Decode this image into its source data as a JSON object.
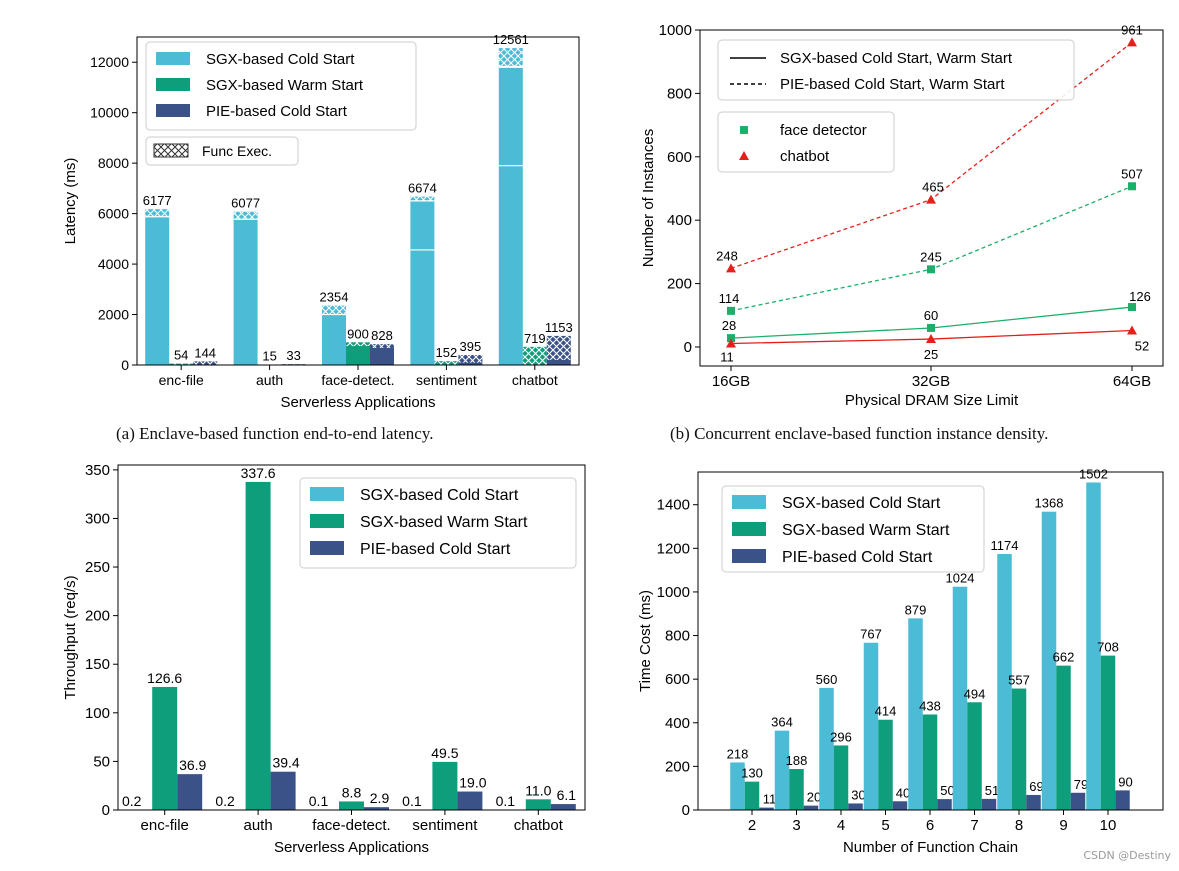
{
  "colors": {
    "sgx_cold": "#4CBCD6",
    "sgx_warm": "#0E9E7C",
    "pie_cold": "#3B5289",
    "face_detector": "#1DAF6A",
    "chatbot": "#E3211C"
  },
  "captions": {
    "a": "(a) Enclave-based function end-to-end latency.",
    "b": "(b) Concurrent enclave-based function instance density."
  },
  "watermark": "CSDN @Destiny",
  "chart_data": [
    {
      "id": "a",
      "type": "bar",
      "xlabel": "Serverless Applications",
      "ylabel": "Latency (ms)",
      "ylim": [
        0,
        13000
      ],
      "yticks": [
        0,
        2000,
        4000,
        6000,
        8000,
        10000,
        12000
      ],
      "categories": [
        "enc-file",
        "auth",
        "face-detect.",
        "sentiment",
        "chatbot"
      ],
      "series": [
        {
          "name": "SGX-based Cold Start",
          "color_key": "sgx_cold",
          "values": [
            6177,
            6077,
            2354,
            6674,
            12561
          ],
          "func_exec": [
            300,
            300,
            354,
            170,
            730
          ]
        },
        {
          "name": "SGX-based Warm Start",
          "color_key": "sgx_warm",
          "values": [
            54,
            15,
            900,
            152,
            719
          ],
          "func_exec": [
            54,
            15,
            150,
            152,
            719
          ]
        },
        {
          "name": "PIE-based Cold Start",
          "color_key": "pie_cold",
          "values": [
            144,
            33,
            828,
            395,
            1153
          ],
          "func_exec": [
            120,
            33,
            150,
            300,
            950
          ]
        }
      ],
      "labels": [
        [
          "6177",
          "54",
          "144"
        ],
        [
          "6077",
          "15",
          "33"
        ],
        [
          "2354",
          "900",
          "828"
        ],
        [
          "6674",
          "152",
          "395"
        ],
        [
          "12561",
          "719",
          "1153"
        ]
      ],
      "legend": {
        "position": "top-left",
        "extra": "Func Exec."
      },
      "grid": false
    },
    {
      "id": "b",
      "type": "line",
      "xlabel": "Physical DRAM Size Limit",
      "ylabel": "Number of Instances",
      "x": [
        "16GB",
        "32GB",
        "64GB"
      ],
      "ylim": [
        -60,
        1000
      ],
      "yticks": [
        0,
        200,
        400,
        600,
        800,
        1000
      ],
      "series": [
        {
          "name": "face detector",
          "color_key": "face_detector",
          "marker": "square",
          "linestyle": "dashed",
          "values": [
            114,
            245,
            507
          ]
        },
        {
          "name": "chatbot",
          "color_key": "chatbot",
          "marker": "triangle",
          "linestyle": "dashed",
          "values": [
            248,
            465,
            961
          ]
        },
        {
          "name": "face detector",
          "color_key": "face_detector",
          "marker": "square",
          "linestyle": "solid",
          "values": [
            28,
            60,
            126
          ]
        },
        {
          "name": "chatbot",
          "color_key": "chatbot",
          "marker": "triangle",
          "linestyle": "solid",
          "values": [
            11,
            25,
            52
          ]
        }
      ],
      "line_legend": [
        "SGX-based Cold Start, Warm Start",
        "PIE-based Cold Start, Warm Start"
      ],
      "marker_legend": [
        "face detector",
        "chatbot"
      ],
      "grid": false
    },
    {
      "id": "c",
      "type": "bar",
      "xlabel": "Serverless Applications",
      "ylabel": "Throughput (req/s)",
      "ylim": [
        0,
        355
      ],
      "yticks": [
        0,
        50,
        100,
        150,
        200,
        250,
        300,
        350
      ],
      "categories": [
        "enc-file",
        "auth",
        "face-detect.",
        "sentiment",
        "chatbot"
      ],
      "series": [
        {
          "name": "SGX-based Cold Start",
          "color_key": "sgx_cold",
          "values": [
            0.2,
            0.2,
            0.1,
            0.1,
            0.1
          ]
        },
        {
          "name": "SGX-based Warm Start",
          "color_key": "sgx_warm",
          "values": [
            126.6,
            337.6,
            8.8,
            49.5,
            11.0
          ]
        },
        {
          "name": "PIE-based Cold Start",
          "color_key": "pie_cold",
          "values": [
            36.9,
            39.4,
            2.9,
            19.0,
            6.1
          ]
        }
      ],
      "labels": [
        [
          "0.2",
          "126.6",
          "36.9"
        ],
        [
          "0.2",
          "337.6",
          "39.4"
        ],
        [
          "0.1",
          "8.8",
          "2.9"
        ],
        [
          "0.1",
          "49.5",
          "19.0"
        ],
        [
          "0.1",
          "11.0",
          "6.1"
        ]
      ],
      "legend": {
        "position": "top-right"
      },
      "grid": false
    },
    {
      "id": "d",
      "type": "bar",
      "xlabel": "Number of Function Chain",
      "ylabel": "Time Cost (ms)",
      "ylim": [
        0,
        1550
      ],
      "yticks": [
        0,
        200,
        400,
        600,
        800,
        1000,
        1200,
        1400
      ],
      "categories": [
        "2",
        "3",
        "4",
        "5",
        "6",
        "7",
        "8",
        "9",
        "10"
      ],
      "series": [
        {
          "name": "SGX-based Cold Start",
          "color_key": "sgx_cold",
          "values": [
            218,
            364,
            560,
            767,
            879,
            1024,
            1174,
            1368,
            1502
          ]
        },
        {
          "name": "SGX-based Warm Start",
          "color_key": "sgx_warm",
          "values": [
            130,
            188,
            296,
            414,
            438,
            494,
            557,
            662,
            708
          ]
        },
        {
          "name": "PIE-based Cold Start",
          "color_key": "pie_cold",
          "values": [
            11,
            20,
            30,
            40,
            50,
            51,
            69,
            79,
            90
          ]
        }
      ],
      "labels": [
        [
          "218",
          "130",
          "11"
        ],
        [
          "364",
          "188",
          "20"
        ],
        [
          "560",
          "296",
          "30"
        ],
        [
          "767",
          "414",
          "40"
        ],
        [
          "879",
          "438",
          "50"
        ],
        [
          "1024",
          "494",
          "51"
        ],
        [
          "1174",
          "557",
          "69"
        ],
        [
          "1368",
          "662",
          "79"
        ],
        [
          "1502",
          "708",
          "90"
        ]
      ],
      "legend": {
        "position": "top-left"
      },
      "grid": false
    }
  ]
}
